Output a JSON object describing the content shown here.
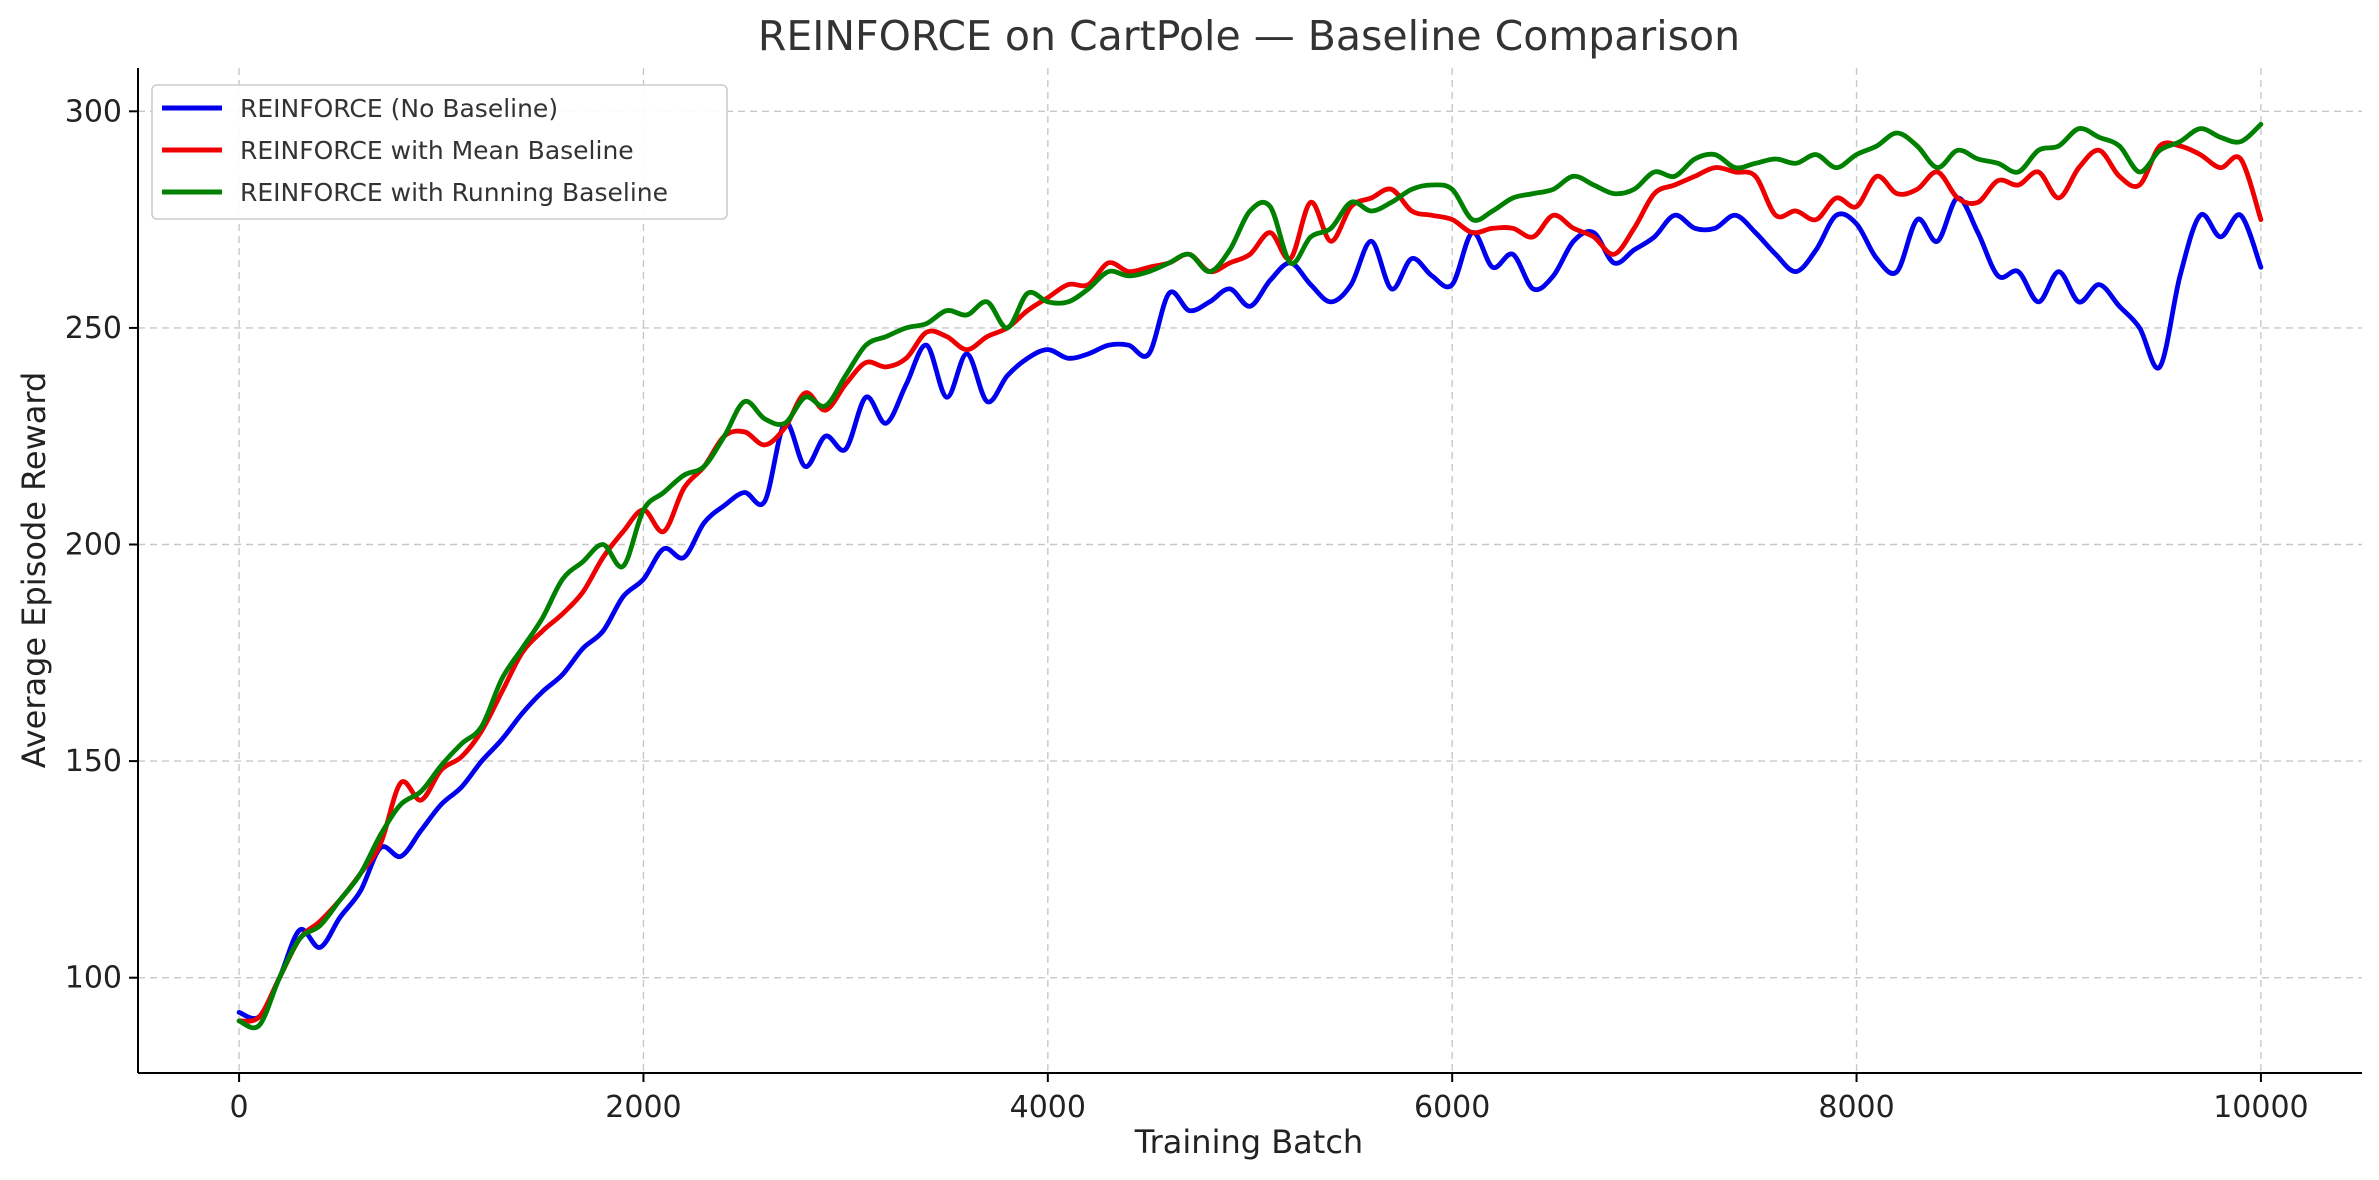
{
  "chart_data": {
    "type": "line",
    "title": "REINFORCE on CartPole — Baseline Comparison",
    "xlabel": "Training Batch",
    "ylabel": "Average Episode Reward",
    "xlim": [
      -500,
      10500
    ],
    "ylim": [
      78,
      310
    ],
    "xticks": [
      0,
      2000,
      4000,
      6000,
      8000,
      10000
    ],
    "xtick_labels": [
      "0",
      "2000",
      "4000",
      "6000",
      "8000",
      "10000"
    ],
    "yticks": [
      100,
      150,
      200,
      250,
      300
    ],
    "ytick_labels": [
      "100",
      "150",
      "200",
      "250",
      "300"
    ],
    "grid": true,
    "legend_position": "top-left",
    "x": [
      0,
      100,
      200,
      300,
      400,
      500,
      600,
      700,
      800,
      900,
      1000,
      1100,
      1200,
      1300,
      1400,
      1500,
      1600,
      1700,
      1800,
      1900,
      2000,
      2100,
      2200,
      2300,
      2400,
      2500,
      2600,
      2700,
      2800,
      2900,
      3000,
      3100,
      3200,
      3300,
      3400,
      3500,
      3600,
      3700,
      3800,
      3900,
      4000,
      4100,
      4200,
      4300,
      4400,
      4500,
      4600,
      4700,
      4800,
      4900,
      5000,
      5100,
      5200,
      5300,
      5400,
      5500,
      5600,
      5700,
      5800,
      5900,
      6000,
      6100,
      6200,
      6300,
      6400,
      6500,
      6600,
      6700,
      6800,
      6900,
      7000,
      7100,
      7200,
      7300,
      7400,
      7500,
      7600,
      7700,
      7800,
      7900,
      8000,
      8100,
      8200,
      8300,
      8400,
      8500,
      8600,
      8700,
      8800,
      8900,
      9000,
      9100,
      9200,
      9300,
      9400,
      9500,
      9600,
      9700,
      9800,
      9900,
      10000
    ],
    "series": [
      {
        "name": "REINFORCE (No Baseline)",
        "color": "#0000ee",
        "values": [
          92,
          91,
          100,
          111,
          107,
          114,
          120,
          130,
          128,
          134,
          140,
          144,
          150,
          155,
          161,
          166,
          170,
          176,
          180,
          188,
          192,
          199,
          197,
          205,
          209,
          212,
          210,
          228,
          218,
          225,
          222,
          234,
          228,
          237,
          246,
          234,
          244,
          233,
          239,
          243,
          245,
          243,
          244,
          246,
          246,
          244,
          258,
          254,
          256,
          259,
          255,
          261,
          265,
          260,
          256,
          260,
          270,
          259,
          266,
          262,
          260,
          272,
          264,
          267,
          259,
          262,
          270,
          272,
          265,
          268,
          271,
          276,
          273,
          273,
          276,
          272,
          267,
          263,
          268,
          276,
          274,
          266,
          263,
          275,
          270,
          280,
          272,
          262,
          263,
          256,
          263,
          256,
          260,
          255,
          250,
          241,
          262,
          276,
          271,
          276,
          264
        ]
      },
      {
        "name": "REINFORCE with Mean Baseline",
        "color": "#ee0000",
        "values": [
          90,
          91,
          100,
          109,
          113,
          118,
          124,
          131,
          145,
          141,
          148,
          151,
          157,
          166,
          175,
          180,
          184,
          189,
          197,
          203,
          208,
          203,
          213,
          218,
          225,
          226,
          223,
          227,
          235,
          231,
          237,
          242,
          241,
          243,
          249,
          248,
          245,
          248,
          250,
          254,
          257,
          260,
          260,
          265,
          263,
          264,
          265,
          267,
          263,
          265,
          267,
          272,
          266,
          279,
          270,
          278,
          280,
          282,
          277,
          276,
          275,
          272,
          273,
          273,
          271,
          276,
          273,
          271,
          267,
          273,
          281,
          283,
          285,
          287,
          286,
          285,
          276,
          277,
          275,
          280,
          278,
          285,
          281,
          282,
          286,
          280,
          279,
          284,
          283,
          286,
          280,
          287,
          291,
          285,
          283,
          292,
          292,
          290,
          287,
          289,
          275
        ]
      },
      {
        "name": "REINFORCE with Running Baseline",
        "color": "#008000",
        "values": [
          90,
          89,
          100,
          109,
          112,
          118,
          124,
          133,
          140,
          143,
          149,
          154,
          158,
          169,
          176,
          183,
          192,
          196,
          200,
          195,
          208,
          212,
          216,
          218,
          225,
          233,
          229,
          228,
          234,
          232,
          239,
          246,
          248,
          250,
          251,
          254,
          253,
          256,
          250,
          258,
          256,
          256,
          259,
          263,
          262,
          263,
          265,
          267,
          263,
          268,
          277,
          278,
          265,
          271,
          273,
          279,
          277,
          279,
          282,
          283,
          282,
          275,
          277,
          280,
          281,
          282,
          285,
          283,
          281,
          282,
          286,
          285,
          289,
          290,
          287,
          288,
          289,
          288,
          290,
          287,
          290,
          292,
          295,
          292,
          287,
          291,
          289,
          288,
          286,
          291,
          292,
          296,
          294,
          292,
          286,
          291,
          293,
          296,
          294,
          293,
          297
        ]
      }
    ]
  }
}
